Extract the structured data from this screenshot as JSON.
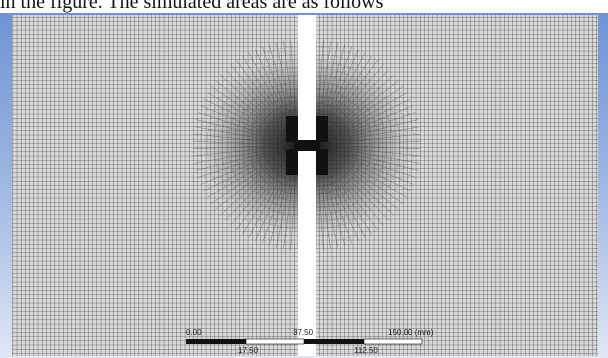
{
  "caption": {
    "text": "in the figure. The simulated areas are as follows"
  },
  "mesh_view": {
    "scale_bar": {
      "top_labels": [
        "0.00",
        "37.50",
        "150.00 (mm)"
      ],
      "bottom_labels": [
        "17.50",
        "112.50"
      ]
    }
  }
}
